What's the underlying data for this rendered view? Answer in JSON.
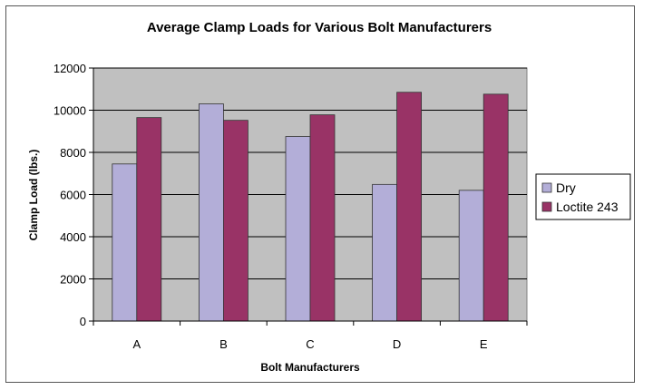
{
  "chart_data": {
    "type": "bar",
    "title": "Average Clamp Loads for Various Bolt Manufacturers",
    "xlabel": "Bolt Manufacturers",
    "ylabel": "Clamp Load (lbs.)",
    "categories": [
      "A",
      "B",
      "C",
      "D",
      "E"
    ],
    "series": [
      {
        "name": "Dry",
        "color": "#b3aed8",
        "values": [
          7450,
          10300,
          8750,
          6480,
          6200
        ]
      },
      {
        "name": "Loctite 243",
        "color": "#993366",
        "values": [
          9650,
          9520,
          9780,
          10850,
          10760
        ]
      }
    ],
    "ylim": [
      0,
      12000
    ],
    "yticks": [
      0,
      2000,
      4000,
      6000,
      8000,
      10000,
      12000
    ],
    "grid": true,
    "plot_background": "#c0c0c0",
    "legend": "right"
  }
}
